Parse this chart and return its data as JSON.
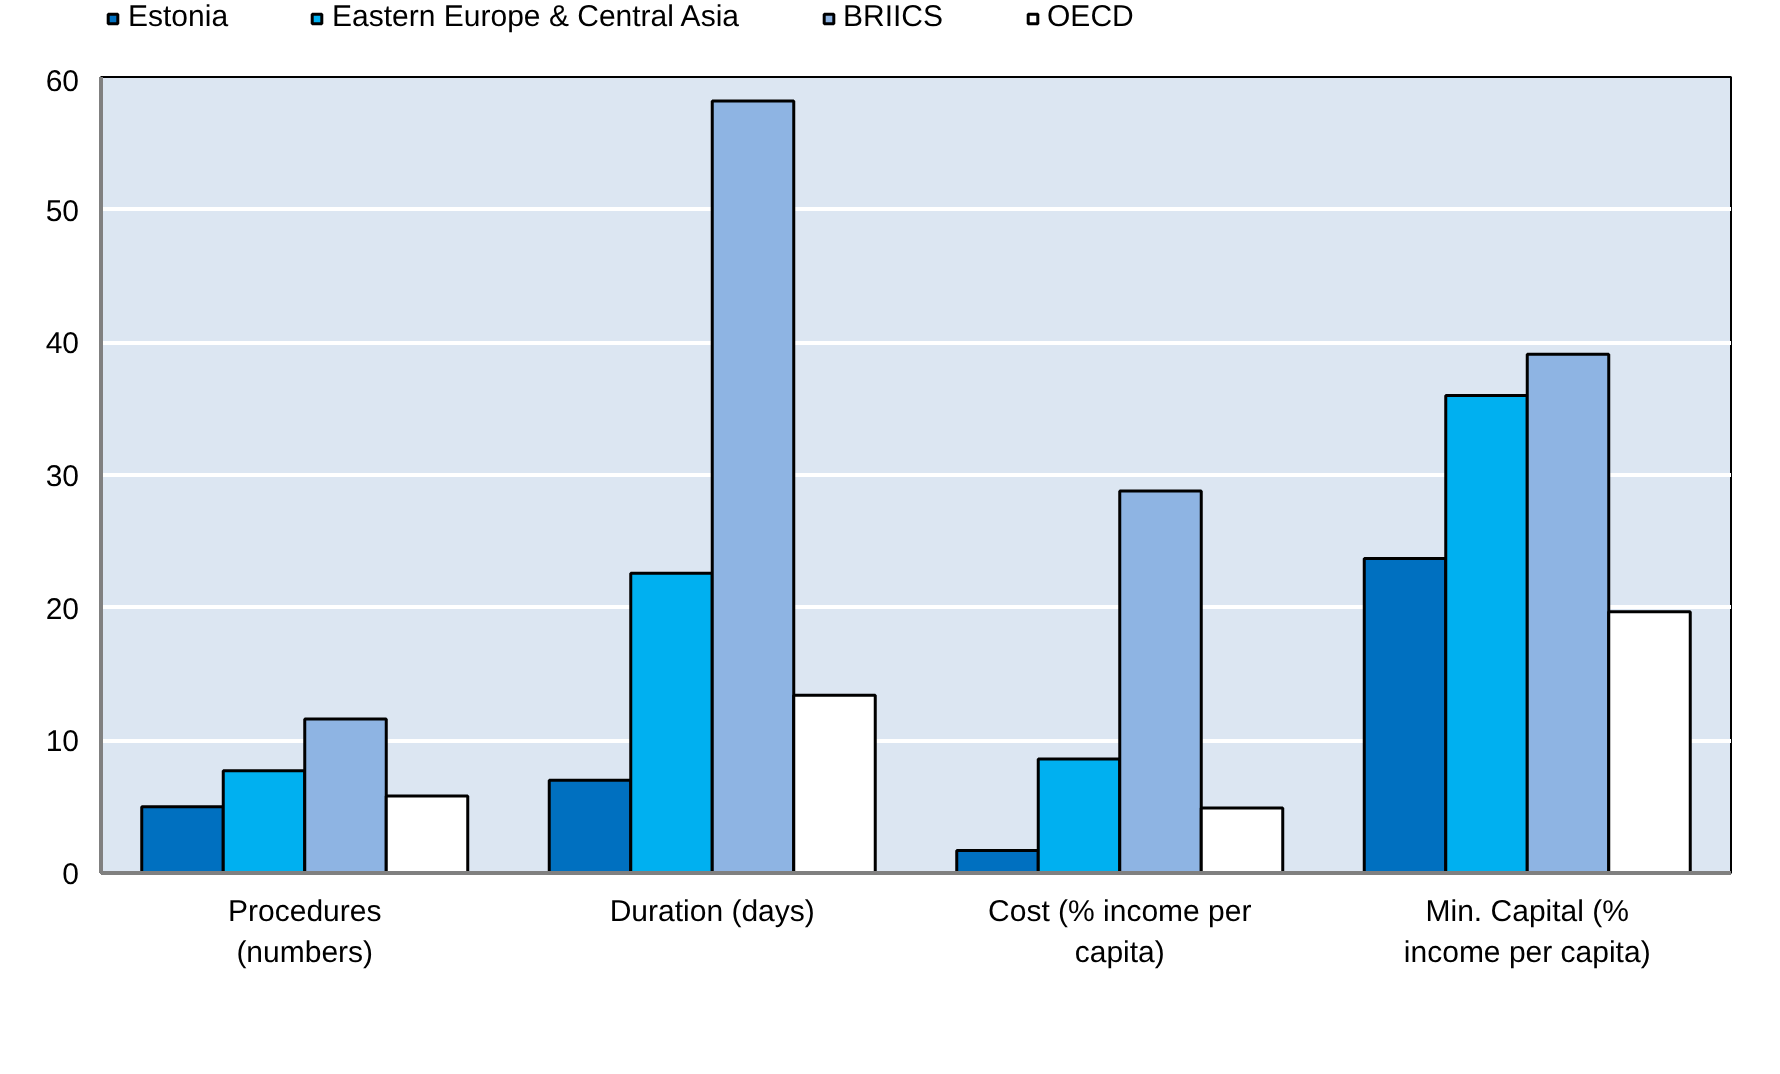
{
  "chart_data": {
    "type": "bar",
    "categories": [
      "Procedures (numbers)",
      "Duration (days)",
      "Cost (% income per capita)",
      "Min. Capital (% income per capita)"
    ],
    "series": [
      {
        "name": "Estonia",
        "color": "#0070c0",
        "values": [
          5.0,
          7.0,
          1.7,
          23.7
        ]
      },
      {
        "name": "Eastern Europe & Central Asia",
        "color": "#00b0f0",
        "values": [
          7.7,
          22.6,
          8.6,
          36.0
        ]
      },
      {
        "name": "BRIICS",
        "color": "#8eb4e3",
        "values": [
          11.6,
          58.2,
          28.8,
          39.1
        ]
      },
      {
        "name": "OECD",
        "color": "#ffffff",
        "values": [
          5.8,
          13.4,
          4.9,
          19.7
        ]
      }
    ],
    "ylim": [
      0,
      60
    ],
    "yticks": [
      0,
      10,
      20,
      30,
      40,
      50,
      60
    ],
    "grid": "y",
    "legend": "top"
  }
}
